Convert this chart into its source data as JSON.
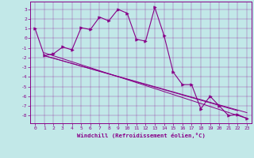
{
  "xlabel": "Windchill (Refroidissement éolien,°C)",
  "background_color": "#c2e8e8",
  "line_color": "#880088",
  "xlim": [
    -0.5,
    23.5
  ],
  "ylim": [
    -8.8,
    3.8
  ],
  "xticks": [
    0,
    1,
    2,
    3,
    4,
    5,
    6,
    7,
    8,
    9,
    10,
    11,
    12,
    13,
    14,
    15,
    16,
    17,
    18,
    19,
    20,
    21,
    22,
    23
  ],
  "yticks": [
    3,
    2,
    1,
    0,
    -1,
    -2,
    -3,
    -4,
    -5,
    -6,
    -7,
    -8
  ],
  "line1_x": [
    0,
    1,
    2,
    3,
    4,
    5,
    6,
    7,
    8,
    9,
    10,
    11,
    12,
    13,
    14,
    15,
    16,
    17,
    18,
    19,
    20,
    21,
    22,
    23
  ],
  "line1_y": [
    1,
    -1.8,
    -1.6,
    -0.9,
    -1.2,
    1.1,
    0.9,
    2.2,
    1.8,
    3.0,
    2.6,
    -0.1,
    -0.3,
    3.2,
    0.3,
    -3.5,
    -4.8,
    -4.8,
    -7.3,
    -6.0,
    -7.0,
    -8.0,
    -7.9,
    -8.3
  ],
  "trend_lines": [
    {
      "x": [
        1,
        23
      ],
      "y": [
        -1.8,
        -7.7
      ]
    },
    {
      "x": [
        1,
        23
      ],
      "y": [
        -1.5,
        -8.3
      ]
    },
    {
      "x": [
        1,
        22
      ],
      "y": [
        -1.8,
        -7.5
      ]
    }
  ]
}
